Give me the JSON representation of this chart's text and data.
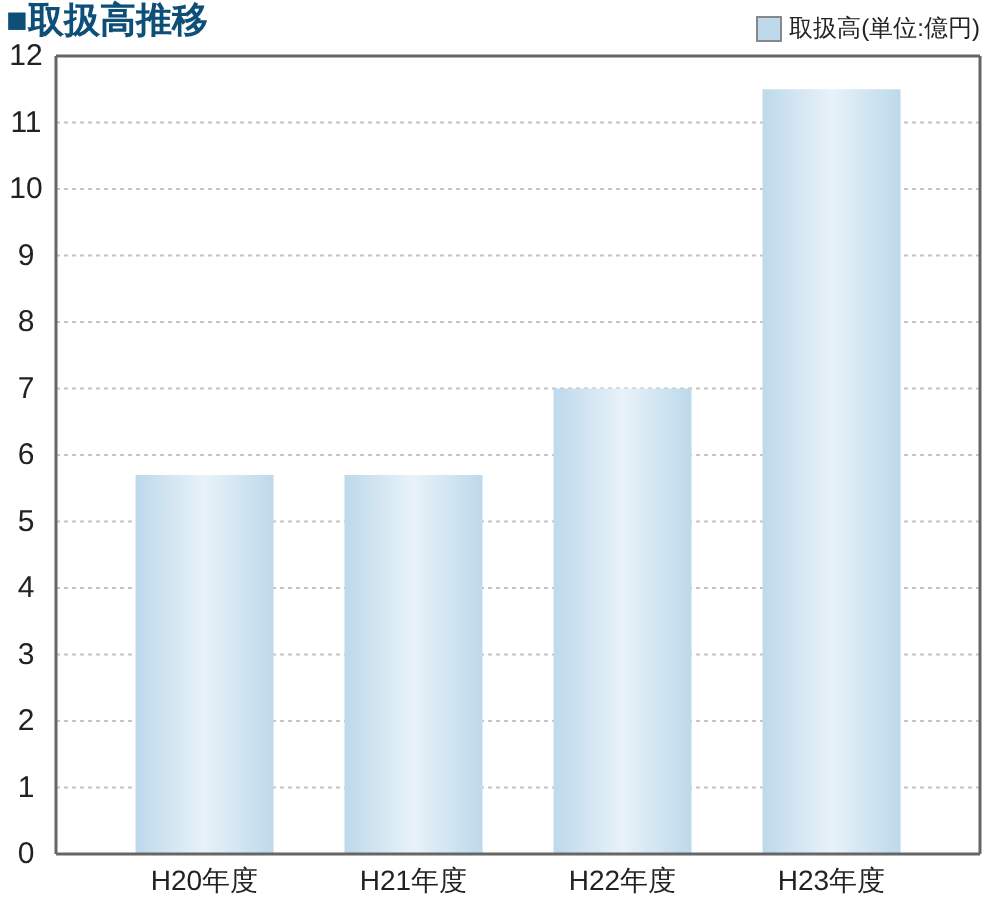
{
  "chart_data": {
    "type": "bar",
    "title": "■取扱高推移",
    "categories": [
      "H20年度",
      "H21年度",
      "H22年度",
      "H23年度"
    ],
    "series": [
      {
        "name": "取扱高(単位:億円)",
        "color": "#bdd9eb",
        "values": [
          5.7,
          5.7,
          7.0,
          11.5
        ]
      }
    ],
    "ylim": [
      0,
      12
    ],
    "yticks": [
      0,
      1,
      2,
      3,
      4,
      5,
      6,
      7,
      8,
      9,
      10,
      11,
      12
    ],
    "grid": "y",
    "legend": "top right"
  }
}
